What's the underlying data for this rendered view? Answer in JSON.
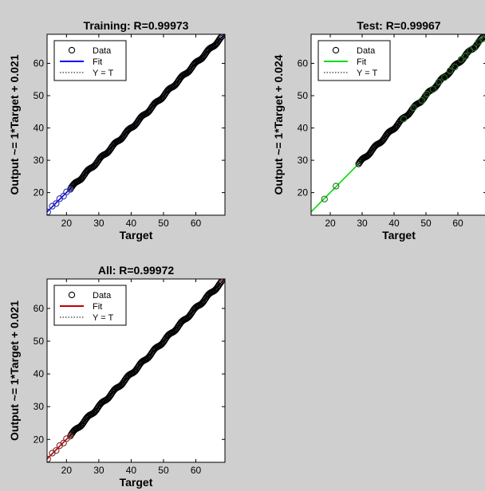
{
  "figure": {
    "background": "#cfcfcf"
  },
  "chart_data": [
    {
      "type": "scatter",
      "title": "Training: R=0.99973",
      "xlabel": "Target",
      "ylabel": "Output ~= 1*Target + 0.021",
      "xlim": [
        14,
        69
      ],
      "ylim": [
        13,
        69
      ],
      "xticks": [
        20,
        30,
        40,
        50,
        60
      ],
      "yticks": [
        20,
        30,
        40,
        50,
        60
      ],
      "grid": false,
      "legend_position": "top-left",
      "legend": [
        "Data",
        "Fit",
        "Y = T"
      ],
      "fit": {
        "slope": 1,
        "intercept": 0.021,
        "color": "#0000ff"
      },
      "marker_color": "#000000",
      "marker_color_sparse": "#2f2fa0",
      "data_range": [
        14,
        68
      ],
      "sparse_points": [
        14.2,
        15.6,
        16.8,
        17.9,
        19.1,
        20.0,
        21.2
      ]
    },
    {
      "type": "scatter",
      "title": "Test: R=0.99967",
      "xlabel": "Target",
      "ylabel": "Output ~= 1*Target + 0.024",
      "xlim": [
        14,
        69
      ],
      "ylim": [
        13,
        69
      ],
      "xticks": [
        20,
        30,
        40,
        50,
        60
      ],
      "yticks": [
        20,
        30,
        40,
        50,
        60
      ],
      "grid": false,
      "legend_position": "top-left",
      "legend": [
        "Data",
        "Fit",
        "Y = T"
      ],
      "fit": {
        "slope": 1,
        "intercept": 0.024,
        "color": "#00dd00"
      },
      "marker_color": "#000000",
      "marker_color_sparse": "#2a6a2a",
      "data_range": [
        21.5,
        68
      ],
      "sparse_points": [
        18.2,
        21.8,
        43.0,
        46.1,
        48.7,
        50.3,
        52.2,
        54.0,
        55.8,
        57.5,
        59.1,
        61.0,
        62.4,
        63.8,
        65.0,
        66.5,
        67.8
      ]
    },
    {
      "type": "scatter",
      "title": "All: R=0.99972",
      "xlabel": "Target",
      "ylabel": "Output ~= 1*Target + 0.021",
      "xlim": [
        14,
        69
      ],
      "ylim": [
        13,
        69
      ],
      "xticks": [
        20,
        30,
        40,
        50,
        60
      ],
      "yticks": [
        20,
        30,
        40,
        50,
        60
      ],
      "grid": false,
      "legend_position": "top-left",
      "legend": [
        "Data",
        "Fit",
        "Y = T"
      ],
      "fit": {
        "slope": 1,
        "intercept": 0.021,
        "color": "#c00000"
      },
      "marker_color": "#000000",
      "marker_color_sparse": "#7a2a2a",
      "data_range": [
        14,
        68
      ],
      "sparse_points": [
        14.2,
        15.6,
        16.8,
        17.9,
        19.1,
        20.0,
        21.2
      ]
    }
  ]
}
